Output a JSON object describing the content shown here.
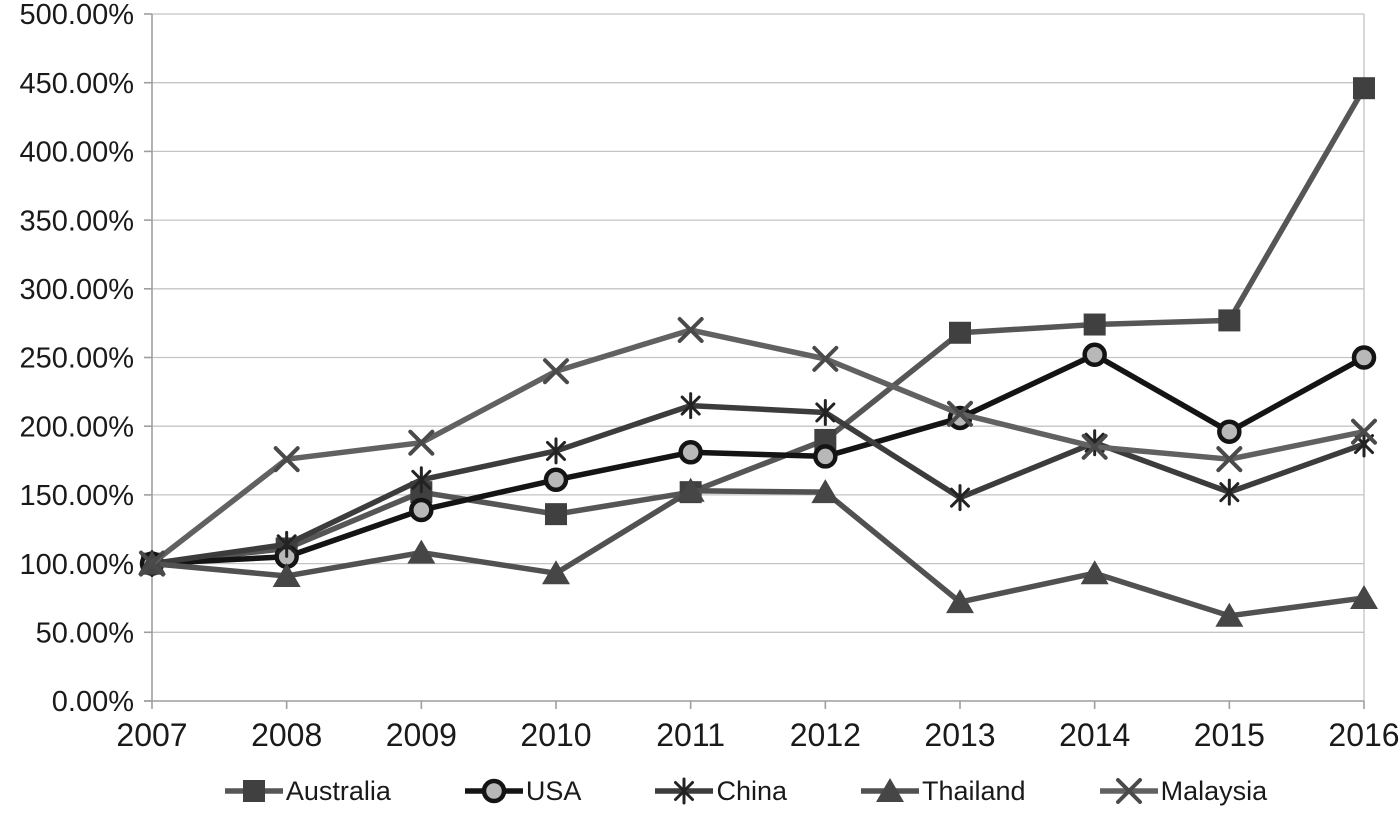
{
  "chart_data": {
    "type": "line",
    "title": "",
    "xlabel": "",
    "ylabel": "",
    "categories": [
      "2007",
      "2008",
      "2009",
      "2010",
      "2011",
      "2012",
      "2013",
      "2014",
      "2015",
      "2016"
    ],
    "series": [
      {
        "name": "Australia",
        "marker": "square",
        "line_color": "#565656",
        "marker_color": "#404040",
        "marker_stroke": "#404040",
        "values": [
          100,
          111,
          152,
          136,
          152,
          190,
          268,
          274,
          277,
          446
        ]
      },
      {
        "name": "USA",
        "marker": "circle",
        "line_color": "#141414",
        "marker_color": "#b8b8b8",
        "marker_stroke": "#141414",
        "values": [
          100,
          105,
          139,
          161,
          181,
          178,
          206,
          252,
          196,
          250
        ]
      },
      {
        "name": "China",
        "marker": "asterisk",
        "line_color": "#3c3c3c",
        "marker_color": "#232323",
        "marker_stroke": "#232323",
        "values": [
          100,
          114,
          161,
          182,
          215,
          210,
          148,
          188,
          152,
          187
        ]
      },
      {
        "name": "Thailand",
        "marker": "triangle",
        "line_color": "#515151",
        "marker_color": "#464646",
        "marker_stroke": "#464646",
        "values": [
          100,
          91,
          108,
          93,
          153,
          152,
          72,
          93,
          62,
          75
        ]
      },
      {
        "name": "Malaysia",
        "marker": "x",
        "line_color": "#616161",
        "marker_color": "#4a4a4a",
        "marker_stroke": "#4a4a4a",
        "values": [
          100,
          176,
          188,
          240,
          270,
          249,
          209,
          185,
          176,
          196
        ]
      }
    ],
    "y_axis": {
      "min": 0,
      "max": 500,
      "step": 50,
      "tick_labels": [
        "0.00%",
        "50.00%",
        "100.00%",
        "150.00%",
        "200.00%",
        "250.00%",
        "300.00%",
        "350.00%",
        "400.00%",
        "450.00%",
        "500.00%"
      ]
    },
    "grid": "horizontal",
    "legend_position": "bottom"
  },
  "colors": {
    "background": "#ffffff",
    "gridline": "#c4c4c4",
    "axis": "#9e9e9e",
    "text": "#1a1a1a"
  }
}
